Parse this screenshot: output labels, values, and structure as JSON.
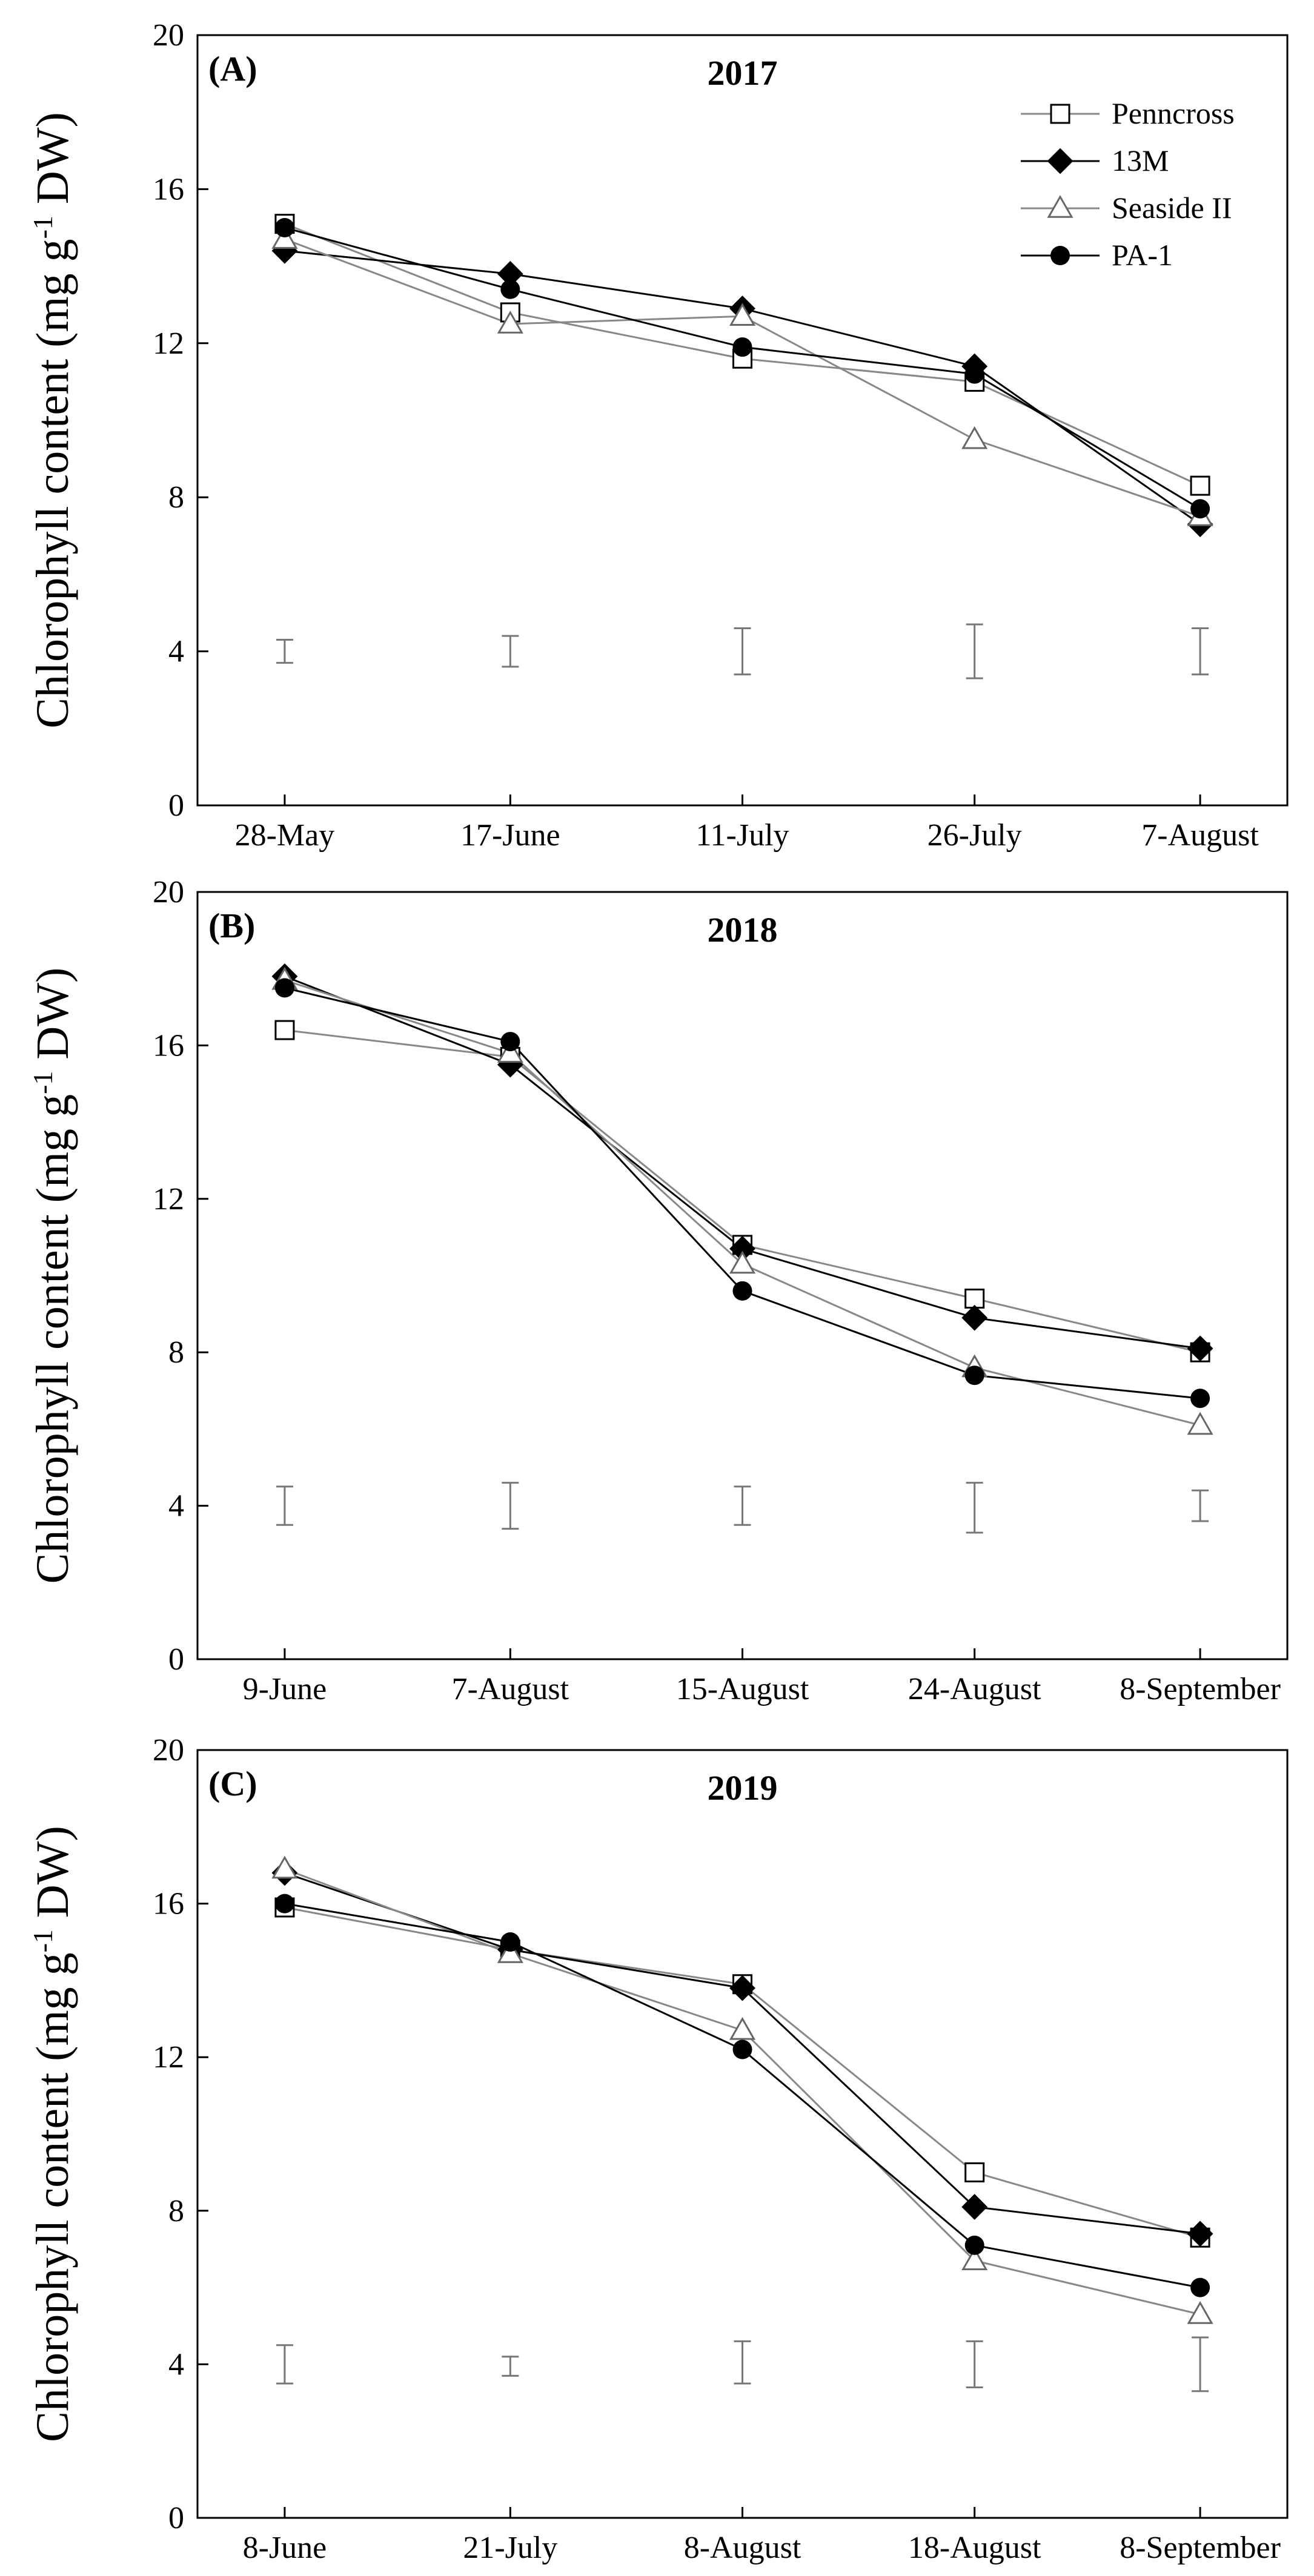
{
  "chart_data": [
    {
      "type": "line",
      "panel_label": "(A)",
      "title": "2017",
      "ylabel_main": "Chlorophyll content (mg g",
      "ylabel_sup": "-1",
      "ylabel_end": " DW)",
      "ylim": [
        0,
        20
      ],
      "yticks": [
        "0",
        "4",
        "8",
        "12",
        "16",
        "20"
      ],
      "categories": [
        "28-May",
        "17-June",
        "11-July",
        "26-July",
        "7-August"
      ],
      "series": [
        {
          "name": "Penncross",
          "marker": "square-open",
          "line_color": "#888888",
          "values": [
            15.1,
            12.8,
            11.6,
            11.0,
            8.3
          ]
        },
        {
          "name": "13M",
          "marker": "diamond-filled",
          "line_color": "#000000",
          "values": [
            14.4,
            13.8,
            12.9,
            11.4,
            7.3
          ]
        },
        {
          "name": "Seaside II",
          "marker": "triangle-open",
          "line_color": "#888888",
          "values": [
            14.7,
            12.5,
            12.7,
            9.5,
            7.5
          ]
        },
        {
          "name": "PA-1",
          "marker": "circle-filled",
          "line_color": "#000000",
          "values": [
            15.0,
            13.4,
            11.9,
            11.2,
            7.7
          ]
        }
      ],
      "error_bars": [
        {
          "center": 4.0,
          "low": 3.7,
          "high": 4.3
        },
        {
          "center": 4.0,
          "low": 3.6,
          "high": 4.4
        },
        {
          "center": 4.0,
          "low": 3.4,
          "high": 4.6
        },
        {
          "center": 4.0,
          "low": 3.3,
          "high": 4.7
        },
        {
          "center": 4.0,
          "low": 3.4,
          "high": 4.6
        }
      ],
      "legend": "top-right"
    },
    {
      "type": "line",
      "panel_label": "(B)",
      "title": "2018",
      "ylabel_main": "Chlorophyll content (mg g",
      "ylabel_sup": "-1",
      "ylabel_end": " DW)",
      "ylim": [
        0,
        20
      ],
      "yticks": [
        "0",
        "4",
        "8",
        "12",
        "16",
        "20"
      ],
      "categories": [
        "9-June",
        "7-August",
        "15-August",
        "24-August",
        "8-September"
      ],
      "series": [
        {
          "name": "Penncross",
          "marker": "square-open",
          "line_color": "#888888",
          "values": [
            16.4,
            15.7,
            10.8,
            9.4,
            8.0
          ]
        },
        {
          "name": "13M",
          "marker": "diamond-filled",
          "line_color": "#000000",
          "values": [
            17.8,
            15.5,
            10.7,
            8.9,
            8.1
          ]
        },
        {
          "name": "Seaside II",
          "marker": "triangle-open",
          "line_color": "#888888",
          "values": [
            17.7,
            15.8,
            10.3,
            7.6,
            6.1
          ]
        },
        {
          "name": "PA-1",
          "marker": "circle-filled",
          "line_color": "#000000",
          "values": [
            17.5,
            16.1,
            9.6,
            7.4,
            6.8
          ]
        }
      ],
      "error_bars": [
        {
          "center": 4.0,
          "low": 3.5,
          "high": 4.5
        },
        {
          "center": 4.0,
          "low": 3.4,
          "high": 4.6
        },
        {
          "center": 4.0,
          "low": 3.5,
          "high": 4.5
        },
        {
          "center": 4.0,
          "low": 3.3,
          "high": 4.6
        },
        {
          "center": 4.0,
          "low": 3.6,
          "high": 4.4
        }
      ],
      "legend": "none"
    },
    {
      "type": "line",
      "panel_label": "(C)",
      "title": "2019",
      "ylabel_main": "Chlorophyll content (mg g",
      "ylabel_sup": "-1",
      "ylabel_end": " DW)",
      "ylim": [
        0,
        20
      ],
      "yticks": [
        "0",
        "4",
        "8",
        "12",
        "16",
        "20"
      ],
      "categories": [
        "8-June",
        "21-July",
        "8-August",
        "18-August",
        "8-September"
      ],
      "series": [
        {
          "name": "Penncross",
          "marker": "square-open",
          "line_color": "#888888",
          "values": [
            15.9,
            14.8,
            13.9,
            9.0,
            7.3
          ]
        },
        {
          "name": "13M",
          "marker": "diamond-filled",
          "line_color": "#000000",
          "values": [
            16.8,
            14.8,
            13.8,
            8.1,
            7.4
          ]
        },
        {
          "name": "Seaside II",
          "marker": "triangle-open",
          "line_color": "#888888",
          "values": [
            16.9,
            14.7,
            12.7,
            6.7,
            5.3
          ]
        },
        {
          "name": "PA-1",
          "marker": "circle-filled",
          "line_color": "#000000",
          "values": [
            16.0,
            15.0,
            12.2,
            7.1,
            6.0
          ]
        }
      ],
      "error_bars": [
        {
          "center": 4.0,
          "low": 3.5,
          "high": 4.5
        },
        {
          "center": 4.0,
          "low": 3.7,
          "high": 4.2
        },
        {
          "center": 4.0,
          "low": 3.5,
          "high": 4.6
        },
        {
          "center": 4.0,
          "low": 3.4,
          "high": 4.6
        },
        {
          "center": 4.0,
          "low": 3.3,
          "high": 4.7
        }
      ],
      "legend": "none"
    }
  ]
}
